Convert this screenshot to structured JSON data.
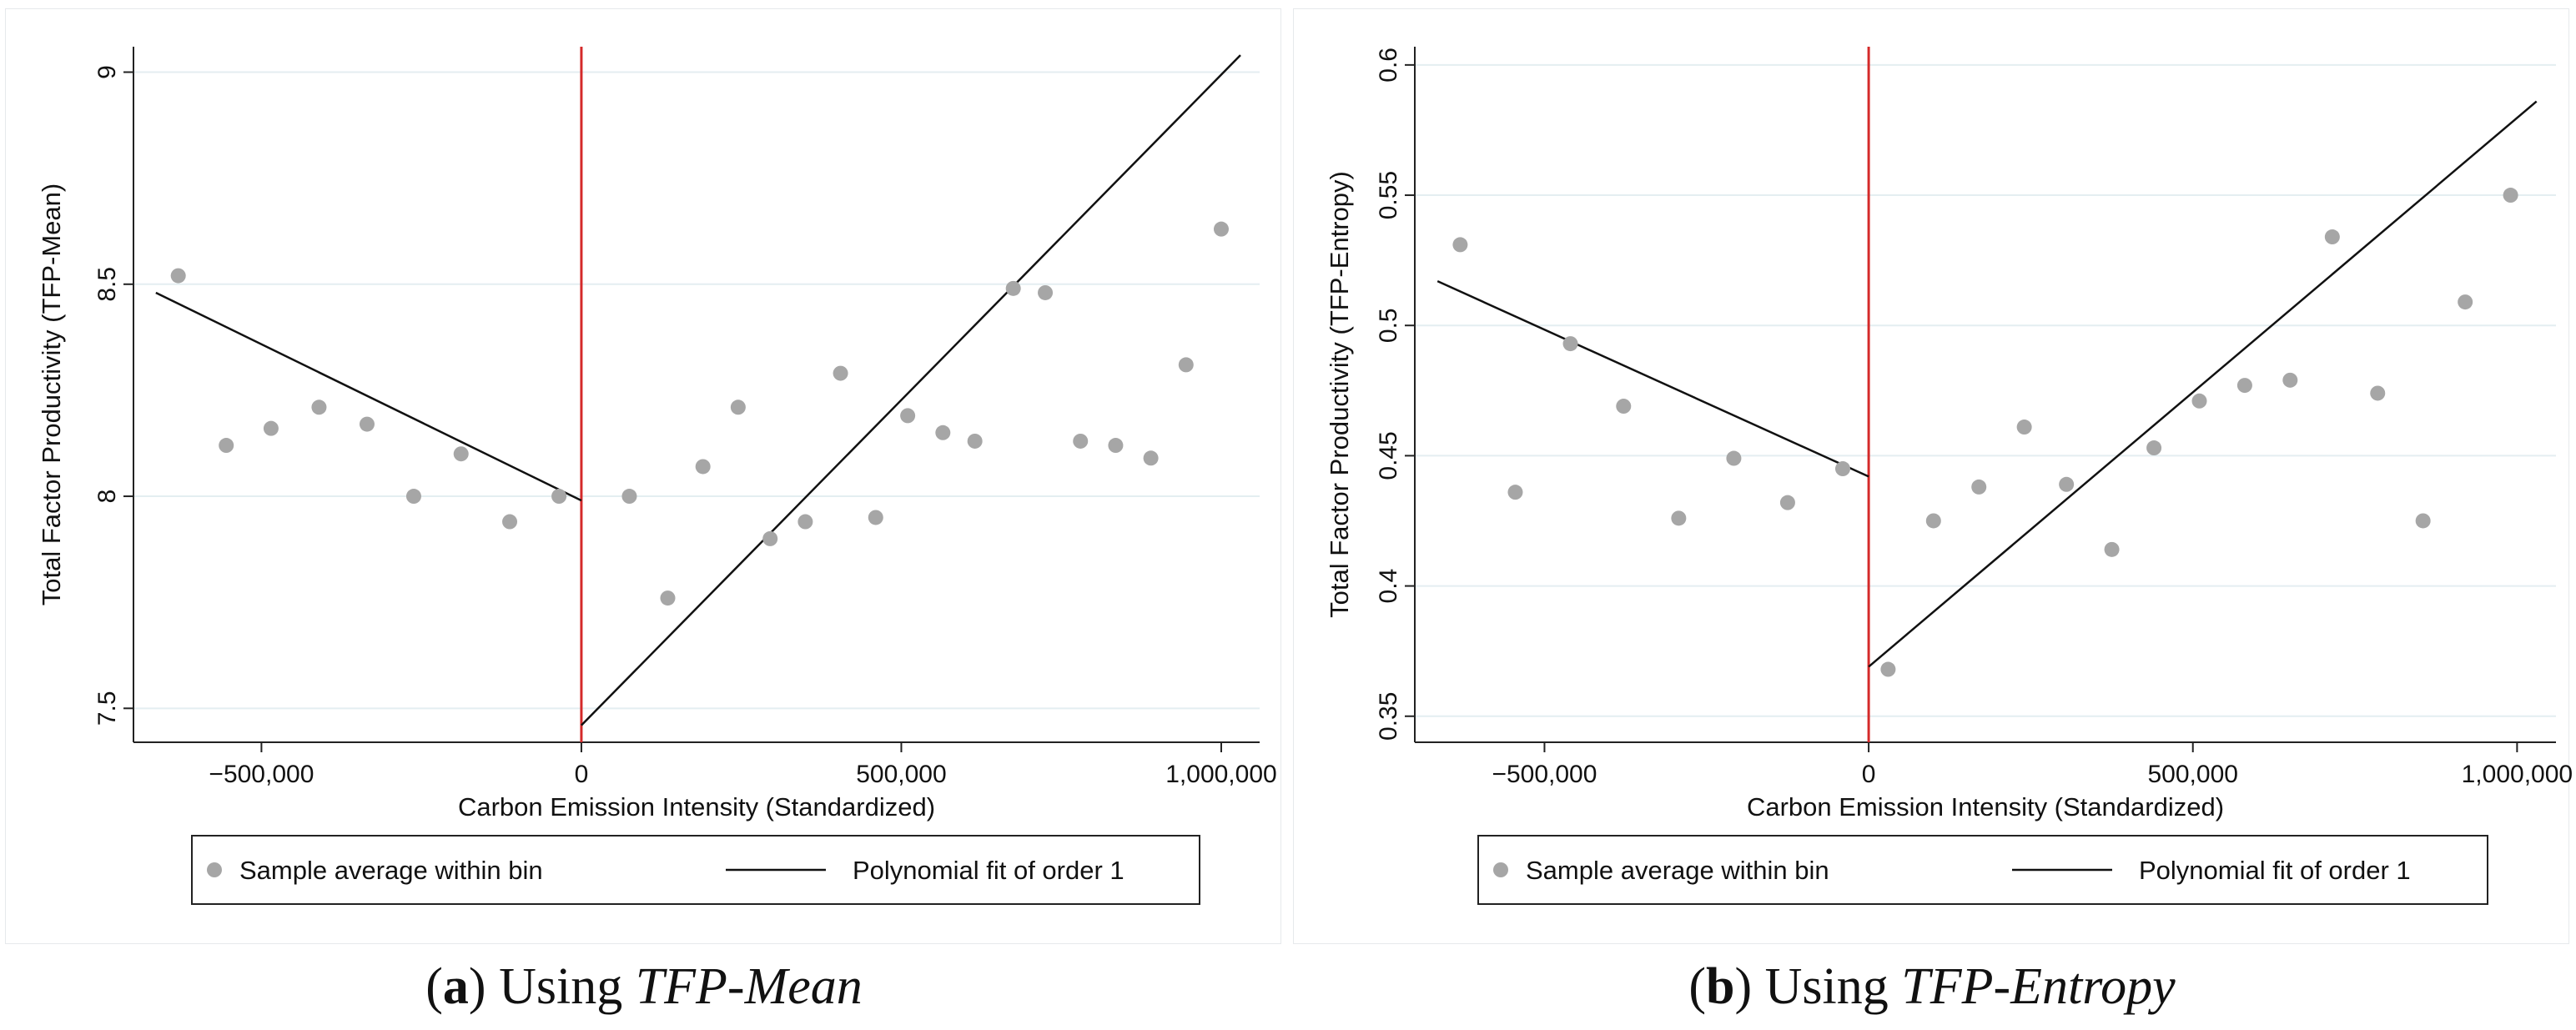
{
  "figure": {
    "panels": [
      {
        "caption": {
          "tag": "a",
          "prefix": "Using ",
          "measure": "TFP-Mean"
        },
        "legend": {
          "scatter_label": "Sample average within bin",
          "line_label": "Polynomial fit of order 1"
        }
      },
      {
        "caption": {
          "tag": "b",
          "prefix": "Using ",
          "measure": "TFP-Entropy"
        },
        "legend": {
          "scatter_label": "Sample average within bin",
          "line_label": "Polynomial fit of order 1"
        }
      }
    ]
  },
  "colors": {
    "points": "#a6a6a6",
    "fit_line": "#111111",
    "cutoff": "#d42a2a",
    "grid": "#e4eef1",
    "axis": "#222222"
  },
  "chart_data": [
    {
      "type": "scatter",
      "title": "",
      "xlabel": "Carbon Emission Intensity (Standardized)",
      "ylabel": "Total Factor Productivity (TFP-Mean)",
      "xlim": [
        -700000,
        1060000
      ],
      "ylim": [
        7.42,
        9.06
      ],
      "xticks": [
        -500000,
        0,
        500000,
        1000000
      ],
      "xtick_labels": [
        "−500,000",
        "0",
        "500,000",
        "1,000,000"
      ],
      "yticks": [
        7.5,
        8,
        8.5,
        9
      ],
      "ytick_labels": [
        "7.5",
        "8",
        "8.5",
        "9"
      ],
      "grid": true,
      "cutoff_x": 0,
      "series": [
        {
          "name": "Sample average within bin",
          "x": [
            -630000,
            -555000,
            -485000,
            -410000,
            -335000,
            -262000,
            -188000,
            -112000,
            -35000,
            75000,
            135000,
            190000,
            245000,
            295000,
            350000,
            405000,
            460000,
            510000,
            565000,
            615000,
            675000,
            725000,
            780000,
            835000,
            890000,
            945000,
            1000000
          ],
          "y": [
            8.52,
            8.12,
            8.16,
            8.21,
            8.17,
            8.0,
            8.1,
            7.94,
            8.0,
            8.0,
            7.76,
            8.07,
            8.21,
            7.9,
            7.94,
            8.29,
            7.95,
            8.19,
            8.15,
            8.13,
            8.49,
            8.48,
            8.13,
            8.12,
            8.09,
            8.31,
            8.63
          ]
        },
        {
          "name": "Polynomial fit of order 1 (left)",
          "x": [
            -665000,
            0
          ],
          "y": [
            8.48,
            7.99
          ]
        },
        {
          "name": "Polynomial fit of order 1 (right)",
          "x": [
            0,
            1030000
          ],
          "y": [
            7.46,
            9.04
          ]
        }
      ],
      "legend": "bottom"
    },
    {
      "type": "scatter",
      "title": "",
      "xlabel": "Carbon Emission Intensity (Standardized)",
      "ylabel": "Total Factor Productivity (TFP-Entropy)",
      "xlim": [
        -700000,
        1060000
      ],
      "ylim": [
        0.34,
        0.607
      ],
      "xticks": [
        -500000,
        0,
        500000,
        1000000
      ],
      "xtick_labels": [
        "−500,000",
        "0",
        "500,000",
        "1,000,000"
      ],
      "yticks": [
        0.35,
        0.4,
        0.45,
        0.5,
        0.55,
        0.6
      ],
      "ytick_labels": [
        "0.35",
        "0.4",
        "0.45",
        "0.5",
        "0.55",
        "0.6"
      ],
      "grid": true,
      "cutoff_x": 0,
      "series": [
        {
          "name": "Sample average within bin",
          "x": [
            -630000,
            -545000,
            -460000,
            -378000,
            -293000,
            -208000,
            -125000,
            -40000,
            30000,
            100000,
            170000,
            240000,
            305000,
            375000,
            440000,
            510000,
            580000,
            650000,
            715000,
            785000,
            855000,
            920000,
            990000
          ],
          "y": [
            0.531,
            0.436,
            0.493,
            0.469,
            0.426,
            0.449,
            0.432,
            0.445,
            0.368,
            0.425,
            0.438,
            0.461,
            0.439,
            0.414,
            0.453,
            0.471,
            0.477,
            0.479,
            0.534,
            0.474,
            0.425,
            0.509,
            0.55
          ]
        },
        {
          "name": "Polynomial fit of order 1 (left)",
          "x": [
            -665000,
            0
          ],
          "y": [
            0.517,
            0.442
          ]
        },
        {
          "name": "Polynomial fit of order 1 (right)",
          "x": [
            0,
            1030000
          ],
          "y": [
            0.369,
            0.586
          ]
        }
      ],
      "legend": "bottom"
    }
  ]
}
